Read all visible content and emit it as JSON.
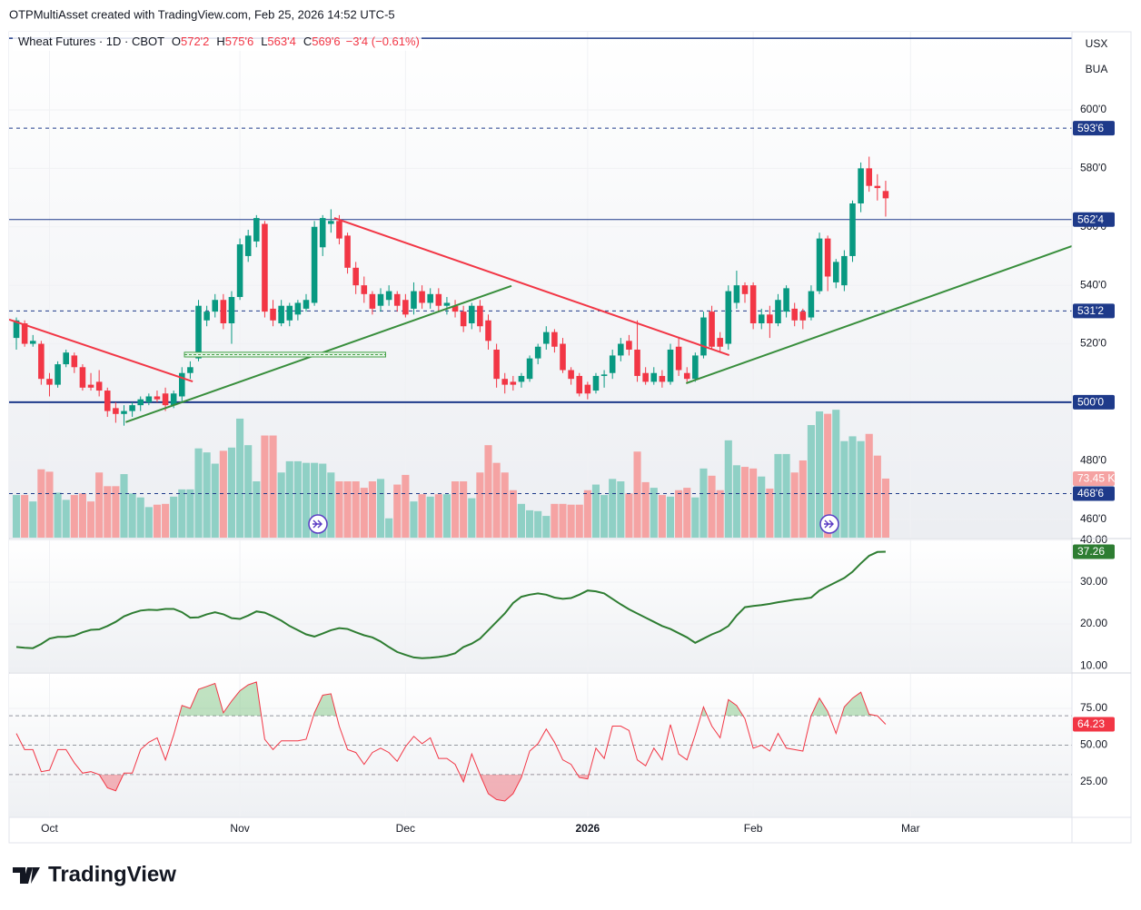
{
  "header": {
    "text": "OTPMultiAsset created with TradingView.com, Feb 25, 2026 14:52 UTC-5"
  },
  "footer": {
    "brand": "TradingView"
  },
  "chart_data": [
    {
      "type": "candlestick",
      "legend": {
        "title": "Wheat Futures · 1D · CBOT",
        "ohlc": [
          {
            "label": "O",
            "text": "572'2"
          },
          {
            "label": "H",
            "text": "575'6"
          },
          {
            "label": "L",
            "text": "563'4"
          },
          {
            "label": "C",
            "text": "569'6"
          }
        ],
        "change": "−3'4 (−0.61%)"
      },
      "currency": "USX",
      "unit": "BUA",
      "up_color": "#089981",
      "down_color": "#f23645",
      "xlim": [
        -0.88,
        127.5
      ],
      "xticks": [
        {
          "value": 4,
          "label": "Oct"
        },
        {
          "value": 27,
          "label": "Nov"
        },
        {
          "value": 47,
          "label": "Dec"
        },
        {
          "value": 69,
          "label": "2026",
          "bold": true
        },
        {
          "value": 89,
          "label": "Feb"
        },
        {
          "value": 108,
          "label": "Mar"
        }
      ],
      "ylim": [
        453.7,
        626.7
      ],
      "yticks": [
        {
          "value": 600,
          "label": "600'0"
        },
        {
          "value": 580,
          "label": "580'0"
        },
        {
          "value": 560,
          "label": "560'0"
        },
        {
          "value": 540,
          "label": "540'0"
        },
        {
          "value": 520,
          "label": "520'0"
        },
        {
          "value": 480,
          "label": "480'0"
        },
        {
          "value": 460,
          "label": "460'0"
        }
      ],
      "grid": true,
      "candles": [
        [
          522,
          529,
          518,
          528
        ],
        [
          527,
          528,
          519,
          520
        ],
        [
          520,
          523,
          519,
          521
        ],
        [
          520,
          521,
          506,
          508
        ],
        [
          508,
          510,
          502,
          506
        ],
        [
          506,
          514,
          505,
          513
        ],
        [
          513,
          518,
          512,
          517
        ],
        [
          516,
          517,
          510,
          512
        ],
        [
          512,
          513,
          504,
          505
        ],
        [
          506,
          510,
          504,
          505
        ],
        [
          507,
          511,
          502,
          504
        ],
        [
          504,
          505,
          495,
          497
        ],
        [
          498,
          500,
          493,
          496
        ],
        [
          496,
          499,
          492,
          497
        ],
        [
          497,
          500,
          495,
          499
        ],
        [
          499,
          502,
          497,
          501
        ],
        [
          500,
          503,
          499,
          502
        ],
        [
          502,
          504,
          500,
          501
        ],
        [
          503,
          505,
          497,
          499
        ],
        [
          499,
          504,
          498,
          503
        ],
        [
          502,
          512,
          500,
          510
        ],
        [
          510,
          514,
          508,
          512
        ],
        [
          515,
          535,
          514,
          533
        ],
        [
          528,
          533,
          526,
          531
        ],
        [
          531,
          537,
          529,
          535
        ],
        [
          535,
          537,
          525,
          527
        ],
        [
          527,
          538,
          520,
          536
        ],
        [
          536,
          556,
          535,
          554
        ],
        [
          550,
          559,
          548,
          557
        ],
        [
          555,
          564,
          553,
          563
        ],
        [
          561,
          562,
          529,
          531
        ],
        [
          532,
          535,
          526,
          528
        ],
        [
          527,
          535,
          526,
          533
        ],
        [
          528,
          534,
          526,
          533
        ],
        [
          530,
          535,
          528,
          534
        ],
        [
          532,
          537,
          531,
          535
        ],
        [
          534,
          562,
          533,
          560
        ],
        [
          553,
          564,
          550,
          563
        ],
        [
          561,
          566,
          558,
          562
        ],
        [
          562,
          564,
          554,
          556
        ],
        [
          557,
          558,
          544,
          546
        ],
        [
          546,
          548,
          537,
          540
        ],
        [
          540,
          543,
          534,
          537
        ],
        [
          537,
          538,
          530,
          532
        ],
        [
          533,
          539,
          531,
          537
        ],
        [
          535,
          540,
          533,
          538
        ],
        [
          537,
          538,
          531,
          533
        ],
        [
          535,
          537,
          529,
          530
        ],
        [
          532,
          541,
          530,
          538
        ],
        [
          538,
          540,
          532,
          534
        ],
        [
          534,
          539,
          532,
          537
        ],
        [
          537,
          539,
          531,
          533
        ],
        [
          533,
          536,
          530,
          534
        ],
        [
          533,
          535,
          529,
          531
        ],
        [
          531,
          533,
          524,
          526
        ],
        [
          527,
          534,
          525,
          533
        ],
        [
          533,
          535,
          524,
          526
        ],
        [
          528,
          530,
          518,
          521
        ],
        [
          518,
          520,
          505,
          508
        ],
        [
          508,
          510,
          503,
          506
        ],
        [
          507,
          509,
          504,
          506
        ],
        [
          507,
          510,
          505,
          509
        ],
        [
          508,
          516,
          507,
          515
        ],
        [
          515,
          520,
          513,
          519
        ],
        [
          520,
          526,
          518,
          524
        ],
        [
          524,
          525,
          517,
          519
        ],
        [
          520,
          522,
          510,
          511
        ],
        [
          511,
          512,
          506,
          508
        ],
        [
          509,
          510,
          502,
          503
        ],
        [
          506,
          507,
          501,
          503
        ],
        [
          504,
          510,
          503,
          509
        ],
        [
          509,
          511,
          505,
          509.5
        ],
        [
          510,
          518,
          508,
          516
        ],
        [
          516,
          522,
          514,
          520
        ],
        [
          521,
          523,
          516,
          518
        ],
        [
          518,
          528,
          507,
          509
        ],
        [
          510,
          512,
          506,
          507
        ],
        [
          507,
          512,
          506,
          510
        ],
        [
          509,
          511,
          505,
          507
        ],
        [
          507,
          520,
          506,
          518
        ],
        [
          519,
          522,
          509,
          511
        ],
        [
          510,
          512,
          507,
          508
        ],
        [
          508,
          517,
          507,
          516
        ],
        [
          516,
          531,
          515,
          529
        ],
        [
          531,
          533,
          518,
          519
        ],
        [
          522,
          524,
          517,
          519
        ],
        [
          520,
          540,
          518,
          538
        ],
        [
          534,
          545,
          532,
          540
        ],
        [
          540,
          541,
          534,
          537
        ],
        [
          540,
          541,
          525,
          527
        ],
        [
          527,
          532,
          525,
          530
        ],
        [
          530,
          533,
          522,
          527
        ],
        [
          527,
          537,
          526,
          535
        ],
        [
          531,
          540,
          529,
          539
        ],
        [
          532,
          534,
          526,
          528
        ],
        [
          531,
          532,
          525,
          528
        ],
        [
          529,
          540,
          528,
          538
        ],
        [
          538,
          558,
          537,
          556
        ],
        [
          556,
          557,
          538,
          543
        ],
        [
          541,
          549,
          539,
          548
        ],
        [
          540,
          552,
          538,
          550
        ],
        [
          550,
          569,
          548,
          568
        ],
        [
          568,
          582,
          565,
          580
        ],
        [
          580,
          584,
          572,
          574
        ],
        [
          574,
          578,
          569,
          573.25
        ],
        [
          572.25,
          575.75,
          563.5,
          569.75
        ]
      ],
      "volume": {
        "up_color": "#8fd0c5",
        "down_color": "#f5a3a3",
        "vlim": [
          0,
          629
        ],
        "values": [
          53,
          53,
          45,
          85,
          82,
          56,
          47,
          53,
          55,
          45,
          81,
          64,
          64,
          79,
          55,
          50,
          38,
          41,
          42,
          51,
          60,
          60,
          111,
          106,
          92,
          108,
          112,
          148,
          115,
          70,
          127,
          127,
          81,
          95,
          95,
          93,
          93,
          92,
          81,
          70,
          70,
          70,
          62,
          70,
          73,
          24,
          66,
          78,
          45,
          54,
          51,
          54,
          54,
          70,
          70,
          49,
          81,
          115,
          93,
          81,
          59,
          42,
          34,
          33,
          27,
          42,
          42,
          41,
          41,
          59,
          66,
          53,
          73,
          70,
          55,
          107,
          69,
          62,
          53,
          51,
          59,
          62,
          50,
          86,
          77,
          59,
          121,
          90,
          88,
          86,
          76,
          61,
          104,
          104,
          81,
          96,
          140,
          157,
          154,
          159,
          120,
          126,
          120,
          129,
          102,
          73.45
        ],
        "value_labels": {
          "105": "73.45 K"
        }
      },
      "hlines": [
        {
          "value": 624.5,
          "style": "solid",
          "color": "#1e3a8a",
          "width": 1.5
        },
        {
          "value": 593.75,
          "label": "593'6",
          "style": "dashed",
          "color": "#1e3a8a",
          "width": 1
        },
        {
          "value": 562.5,
          "label": "562'4",
          "style": "solid",
          "color": "#1e3a8a",
          "width": 1
        },
        {
          "value": 531.25,
          "label": "531'2",
          "style": "dashed",
          "color": "#1e3a8a",
          "width": 1
        },
        {
          "value": 500,
          "label": "500'0",
          "style": "solid",
          "color": "#1e3a8a",
          "width": 2
        },
        {
          "value": 468.75,
          "label": "468'6",
          "style": "dashed",
          "color": "#1e3a8a",
          "width": 1
        }
      ],
      "drawings": [
        {
          "type": "line",
          "color": "#f23645",
          "points": [
            [
              -0.88,
              528.3
            ],
            [
              21.3,
              507.1
            ]
          ]
        },
        {
          "type": "line",
          "color": "#388e3c",
          "points": [
            [
              13.2,
              493.2
            ],
            [
              59.8,
              539.8
            ]
          ]
        },
        {
          "type": "line",
          "color": "#f23645",
          "points": [
            [
              38.4,
              563.0
            ],
            [
              86.1,
              516.1
            ]
          ]
        },
        {
          "type": "line",
          "color": "#388e3c",
          "points": [
            [
              80.9,
              506.5
            ],
            [
              127.5,
              553.4
            ]
          ]
        },
        {
          "type": "zone",
          "color": "#43a047",
          "points": [
            [
              20.3,
              517.1
            ],
            [
              44.6,
              515.5
            ]
          ]
        }
      ]
    },
    {
      "type": "line",
      "color": "#2e7d32",
      "ylim": [
        8.5,
        40.2
      ],
      "yticks": [
        {
          "value": 40,
          "label": "40.00"
        },
        {
          "value": 30,
          "label": "30.00"
        },
        {
          "value": 20,
          "label": "20.00"
        },
        {
          "value": 10,
          "label": "10.00"
        }
      ],
      "grid": true,
      "values": [
        14.5,
        14.3,
        14.2,
        15.2,
        16.5,
        16.9,
        16.9,
        17.2,
        18,
        18.6,
        18.7,
        19.5,
        20.5,
        21.8,
        22.6,
        23.2,
        23.4,
        23.3,
        23.6,
        23.6,
        22.8,
        21.5,
        21.6,
        22.3,
        22.8,
        22.3,
        21.4,
        21.2,
        22,
        23,
        22.7,
        21.8,
        20.8,
        19.5,
        18.5,
        17.5,
        17,
        17.7,
        18.5,
        19,
        18.8,
        18,
        17.3,
        16.8,
        15.8,
        14.5,
        13.3,
        12.6,
        12,
        11.8,
        11.9,
        12.1,
        12.4,
        13,
        14.5,
        15.3,
        16.5,
        18.5,
        20.5,
        22.5,
        25,
        26.5,
        27,
        27.3,
        27,
        26.3,
        26,
        26.2,
        27,
        28,
        27.8,
        27.3,
        26,
        24.7,
        23.5,
        22.5,
        21.5,
        20.5,
        19.5,
        18.8,
        17.8,
        16.8,
        15.5,
        16.5,
        17.5,
        18.3,
        19.5,
        22,
        24,
        24.3,
        24.5,
        24.8,
        25.2,
        25.5,
        25.8,
        26,
        26.3,
        28,
        29,
        30,
        31,
        32.5,
        34.5,
        36.3,
        37.2,
        37.26
      ]
    },
    {
      "type": "line",
      "color": "#f23645",
      "ylim": [
        0.9,
        98.5
      ],
      "yticks": [
        {
          "value": 75,
          "label": "75.00"
        },
        {
          "value": 50,
          "label": "50.00"
        },
        {
          "value": 25,
          "label": "25.00"
        }
      ],
      "grid": true,
      "levels": [
        70,
        50,
        30
      ],
      "overbought_color": "#4caf50",
      "oversold_color": "#f23645",
      "values": [
        58,
        47,
        47,
        32,
        33,
        47,
        47,
        38,
        31,
        32,
        30,
        21,
        19,
        31,
        31,
        47,
        52,
        55,
        40,
        57,
        77,
        75,
        88,
        90,
        92,
        72,
        80,
        87,
        91,
        93,
        54,
        47,
        53,
        53,
        53,
        54,
        72,
        84,
        85,
        63,
        47,
        45,
        37,
        45,
        48,
        45,
        39,
        49,
        56,
        51,
        55,
        41,
        41,
        37,
        25,
        44,
        30,
        17,
        13,
        12,
        17,
        28,
        46,
        51,
        61,
        52,
        40,
        37,
        28,
        27,
        48,
        41,
        63,
        63,
        60,
        40,
        36,
        48,
        40,
        64,
        44,
        40,
        57,
        76,
        63,
        55,
        81,
        77,
        68,
        48,
        50,
        46,
        58,
        48,
        47,
        46,
        70,
        82,
        73,
        58,
        76,
        82,
        86,
        71,
        70,
        64.23
      ]
    }
  ]
}
